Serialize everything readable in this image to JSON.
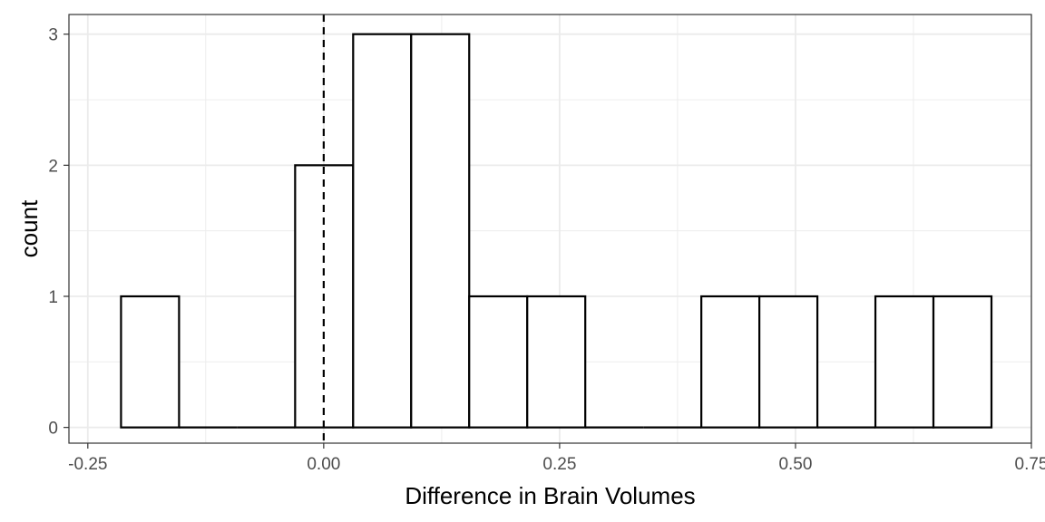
{
  "chart_data": {
    "type": "bar",
    "subtype": "histogram",
    "title": "",
    "xlabel": "Difference in Brain Volumes",
    "ylabel": "count",
    "xlim": [
      -0.27,
      0.75
    ],
    "ylim": [
      -0.12,
      3.15
    ],
    "x_ticks": [
      -0.25,
      0.0,
      0.25,
      0.5,
      0.75
    ],
    "x_tick_labels": [
      "-0.25",
      "0.00",
      "0.25",
      "0.50",
      "0.75"
    ],
    "y_ticks": [
      0,
      1,
      2,
      3
    ],
    "y_tick_labels": [
      "0",
      "1",
      "2",
      "3"
    ],
    "bins": [
      {
        "x0": -0.2148,
        "x1": -0.1533,
        "count": 1
      },
      {
        "x0": -0.1533,
        "x1": -0.0918,
        "count": 0
      },
      {
        "x0": -0.0918,
        "x1": -0.0303,
        "count": 0
      },
      {
        "x0": -0.0303,
        "x1": 0.0312,
        "count": 2
      },
      {
        "x0": 0.0312,
        "x1": 0.0927,
        "count": 3
      },
      {
        "x0": 0.0927,
        "x1": 0.1542,
        "count": 3
      },
      {
        "x0": 0.1542,
        "x1": 0.2157,
        "count": 1
      },
      {
        "x0": 0.2157,
        "x1": 0.2772,
        "count": 1
      },
      {
        "x0": 0.2772,
        "x1": 0.3387,
        "count": 0
      },
      {
        "x0": 0.3387,
        "x1": 0.4002,
        "count": 0
      },
      {
        "x0": 0.4002,
        "x1": 0.4617,
        "count": 1
      },
      {
        "x0": 0.4617,
        "x1": 0.5232,
        "count": 1
      },
      {
        "x0": 0.5232,
        "x1": 0.5847,
        "count": 0
      },
      {
        "x0": 0.5847,
        "x1": 0.6462,
        "count": 1
      },
      {
        "x0": 0.6462,
        "x1": 0.7077,
        "count": 1
      }
    ],
    "reference_line": {
      "x": 0,
      "style": "dashed"
    },
    "bar_fill": "#ffffff",
    "bar_stroke": "#000000",
    "grid": true,
    "grid_color": "#ebebeb",
    "legend": "none"
  }
}
